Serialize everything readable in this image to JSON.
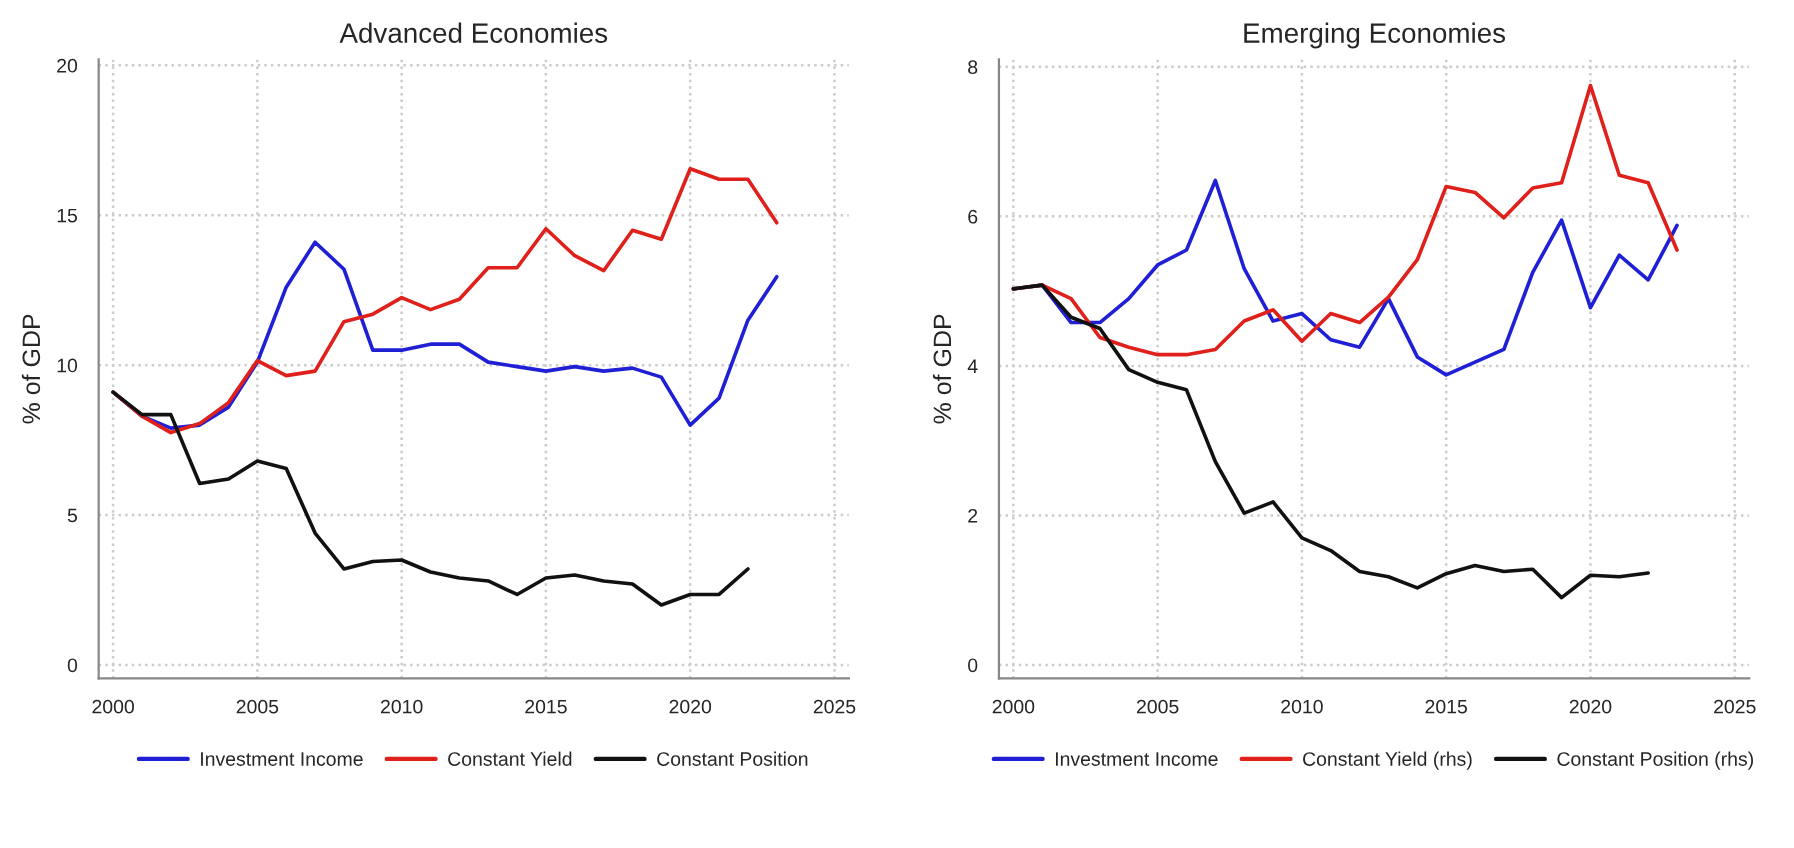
{
  "chart_data": [
    {
      "type": "line",
      "title": "Advanced Economies",
      "ylabel": "% of GDP",
      "x": [
        2000,
        2001,
        2002,
        2003,
        2004,
        2005,
        2006,
        2007,
        2008,
        2009,
        2010,
        2011,
        2012,
        2013,
        2014,
        2015,
        2016,
        2017,
        2018,
        2019,
        2020,
        2021,
        2022,
        2023
      ],
      "series": [
        {
          "name": "Investment Income",
          "color": "#1f1fd6",
          "values": [
            9.1,
            8.3,
            7.9,
            8.0,
            8.6,
            10.1,
            12.6,
            14.1,
            13.2,
            10.5,
            10.5,
            10.7,
            10.7,
            10.1,
            9.95,
            9.8,
            9.95,
            9.8,
            9.9,
            9.6,
            8.0,
            8.9,
            11.5,
            12.95
          ]
        },
        {
          "name": "Constant Yield",
          "color": "#e0201b",
          "values": [
            9.1,
            8.3,
            7.75,
            8.05,
            8.75,
            10.15,
            9.65,
            9.8,
            11.45,
            11.7,
            12.25,
            11.85,
            12.2,
            13.25,
            13.25,
            14.55,
            13.65,
            13.15,
            14.5,
            14.2,
            16.55,
            16.2,
            16.2,
            14.75
          ]
        },
        {
          "name": "Constant Position",
          "color": "#111111",
          "values": [
            9.1,
            8.35,
            8.35,
            6.05,
            6.2,
            6.8,
            6.55,
            4.4,
            3.2,
            3.45,
            3.5,
            3.1,
            2.9,
            2.8,
            2.35,
            2.9,
            3.0,
            2.8,
            2.7,
            2.0,
            2.35,
            2.35,
            3.2,
            null
          ]
        }
      ],
      "xlim": [
        1999.5,
        2025.5
      ],
      "ylim": [
        -0.45,
        20.2
      ],
      "xticks": [
        2000,
        2005,
        2010,
        2015,
        2020,
        2025
      ],
      "yticks": [
        0,
        5,
        10,
        15,
        20
      ],
      "grid": true,
      "legend": "bottom",
      "line_style": "solid",
      "marker": "none"
    },
    {
      "type": "line",
      "title": "Emerging Economies",
      "ylabel": "% of GDP",
      "x": [
        2000,
        2001,
        2002,
        2003,
        2004,
        2005,
        2006,
        2007,
        2008,
        2009,
        2010,
        2011,
        2012,
        2013,
        2014,
        2015,
        2016,
        2017,
        2018,
        2019,
        2020,
        2021,
        2022,
        2023
      ],
      "series": [
        {
          "name": "Investment Income",
          "color": "#1f1fd6",
          "values": [
            5.03,
            5.08,
            4.58,
            4.58,
            4.9,
            5.35,
            5.55,
            6.48,
            5.3,
            4.6,
            4.7,
            4.35,
            4.25,
            4.9,
            4.12,
            3.88,
            4.05,
            4.22,
            5.25,
            5.95,
            4.78,
            5.48,
            5.15,
            5.88
          ]
        },
        {
          "name": "Constant Yield (rhs)",
          "color": "#e0201b",
          "values": [
            5.03,
            5.08,
            4.9,
            4.38,
            4.25,
            4.15,
            4.15,
            4.22,
            4.6,
            4.75,
            4.33,
            4.7,
            4.58,
            4.92,
            5.42,
            6.4,
            6.32,
            5.98,
            6.38,
            6.45,
            7.75,
            6.55,
            6.45,
            5.55
          ]
        },
        {
          "name": "Constant Position (rhs)",
          "color": "#111111",
          "values": [
            5.03,
            5.08,
            4.65,
            4.5,
            3.95,
            3.78,
            3.68,
            2.72,
            2.03,
            2.18,
            1.7,
            1.53,
            1.25,
            1.18,
            1.03,
            1.22,
            1.33,
            1.25,
            1.28,
            0.9,
            1.2,
            1.18,
            1.23,
            null
          ]
        }
      ],
      "xlim": [
        1999.5,
        2025.5
      ],
      "ylim": [
        -0.18,
        8.1
      ],
      "xticks": [
        2000,
        2005,
        2010,
        2015,
        2020,
        2025
      ],
      "yticks": [
        0,
        2,
        4,
        6,
        8
      ],
      "grid": true,
      "legend": "bottom",
      "line_style": "solid",
      "marker": "none"
    }
  ]
}
